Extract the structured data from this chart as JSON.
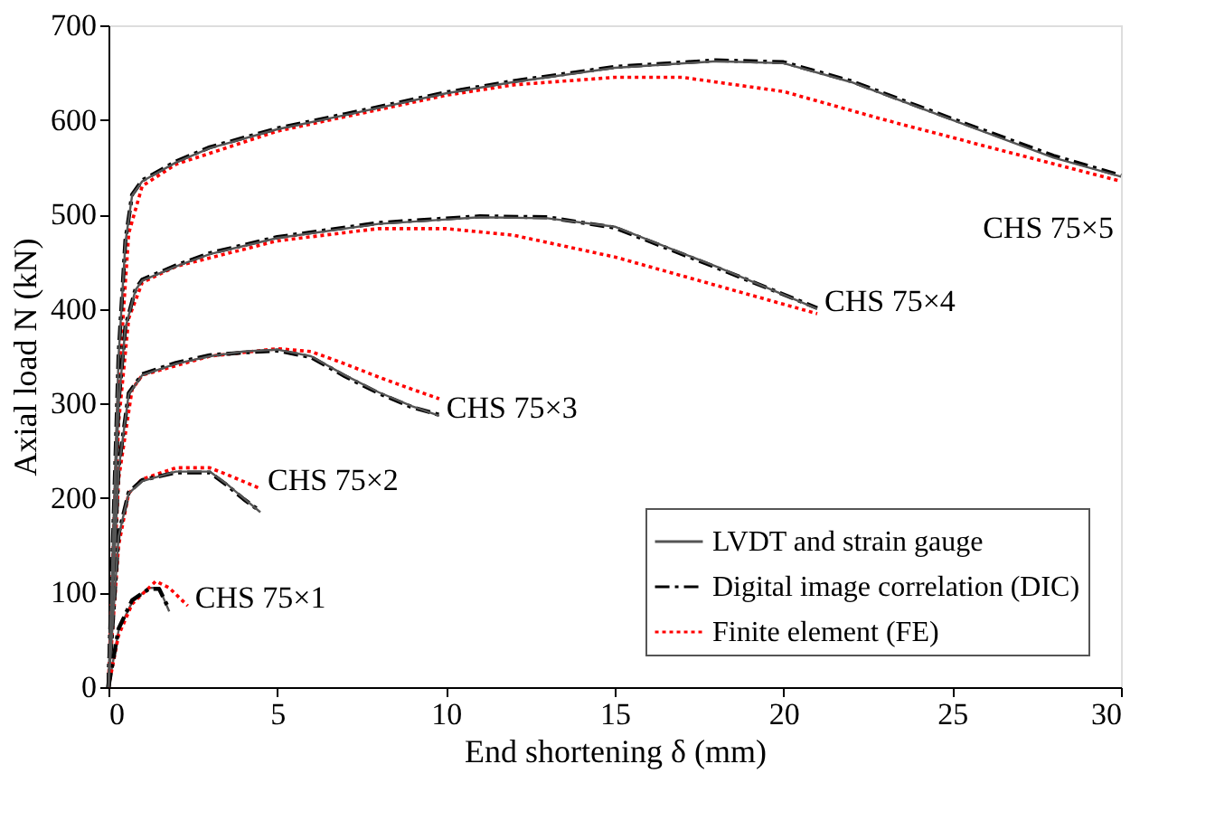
{
  "chart_data": {
    "type": "line",
    "xlabel": "End shortening δ (mm)",
    "ylabel": "Axial load N (kN)",
    "xlim": [
      0,
      30
    ],
    "xticks": [
      0,
      5,
      10,
      15,
      20,
      25,
      30
    ],
    "ylim": [
      0,
      700
    ],
    "yticks": [
      0,
      100,
      200,
      300,
      400,
      500,
      600,
      700
    ],
    "grid": false,
    "legend": "bottom right",
    "marker": "none",
    "series": [
      {
        "name": "LVDT and strain gauge",
        "color": "#555555",
        "line_style": "solid",
        "x": [
          0,
          0.3,
          0.7,
          1.2,
          1.5,
          1.8
        ],
        "values": [
          0,
          60,
          90,
          105,
          105,
          80
        ]
      },
      {
        "color": "#555555",
        "line_style": "solid",
        "x": [
          0,
          0.3,
          0.6,
          1,
          2,
          3,
          3.5,
          4,
          4.5
        ],
        "values": [
          0,
          160,
          205,
          218,
          228,
          228,
          215,
          200,
          185
        ]
      },
      {
        "color": "#555555",
        "line_style": "solid",
        "x": [
          0,
          0.3,
          0.6,
          1,
          2,
          3,
          4,
          5,
          6,
          7,
          8,
          9,
          9.8
        ],
        "values": [
          0,
          230,
          310,
          330,
          342,
          350,
          355,
          357,
          350,
          330,
          312,
          297,
          287
        ]
      },
      {
        "color": "#555555",
        "line_style": "solid",
        "x": [
          0,
          0.3,
          0.5,
          0.8,
          1,
          2,
          3,
          5,
          8,
          11,
          13,
          15,
          18,
          21
        ],
        "values": [
          0,
          300,
          380,
          420,
          430,
          445,
          458,
          475,
          490,
          497,
          496,
          487,
          445,
          400
        ]
      },
      {
        "color": "#555555",
        "line_style": "solid",
        "x": [
          0,
          0.3,
          0.5,
          0.7,
          1,
          2,
          3,
          5,
          7,
          10,
          12,
          15,
          18,
          20,
          22,
          25,
          28,
          30
        ],
        "values": [
          0,
          350,
          470,
          520,
          535,
          555,
          570,
          590,
          605,
          628,
          640,
          655,
          662,
          660,
          640,
          600,
          560,
          540
        ]
      },
      {
        "name": "Digital image correlation (DIC)",
        "color": "#000000",
        "line_style": "dashdot",
        "x": [
          0,
          0.3,
          0.7,
          1.2,
          1.5,
          1.8
        ],
        "values": [
          0,
          62,
          92,
          104,
          104,
          82
        ]
      },
      {
        "color": "#000000",
        "line_style": "dashdot",
        "x": [
          0,
          0.3,
          0.6,
          1,
          2,
          3,
          3.5,
          4,
          4.5
        ],
        "values": [
          0,
          162,
          206,
          219,
          227,
          227,
          214,
          199,
          186
        ]
      },
      {
        "color": "#000000",
        "line_style": "dashdot",
        "x": [
          0,
          0.3,
          0.6,
          1,
          2,
          3,
          4,
          5,
          6,
          7,
          8,
          9,
          9.8
        ],
        "values": [
          0,
          232,
          311,
          331,
          343,
          351,
          354,
          356,
          349,
          329,
          311,
          296,
          288
        ]
      },
      {
        "color": "#000000",
        "line_style": "dashdot",
        "x": [
          0,
          0.3,
          0.5,
          0.8,
          1,
          2,
          3,
          5,
          8,
          11,
          13,
          15,
          18,
          21
        ],
        "values": [
          0,
          302,
          381,
          421,
          431,
          446,
          459,
          476,
          491,
          498,
          497,
          486,
          444,
          401
        ]
      },
      {
        "color": "#000000",
        "line_style": "dashdot",
        "x": [
          0,
          0.3,
          0.5,
          0.7,
          1,
          2,
          3,
          5,
          7,
          10,
          12,
          15,
          18,
          20,
          22,
          25,
          28,
          30
        ],
        "values": [
          0,
          352,
          472,
          521,
          536,
          556,
          571,
          591,
          606,
          629,
          641,
          656,
          663,
          661,
          641,
          601,
          562,
          541
        ]
      },
      {
        "name": "Finite element (FE)",
        "color": "#ff0000",
        "line_style": "dotted",
        "x": [
          0,
          0.3,
          0.7,
          1.4,
          1.8,
          2.35
        ],
        "values": [
          0,
          55,
          88,
          112,
          105,
          86
        ]
      },
      {
        "color": "#ff0000",
        "line_style": "dotted",
        "x": [
          0,
          0.3,
          0.6,
          1,
          2,
          3,
          3.5,
          4.5
        ],
        "values": [
          0,
          150,
          205,
          220,
          232,
          232,
          225,
          210
        ]
      },
      {
        "color": "#ff0000",
        "line_style": "dotted",
        "x": [
          0,
          0.3,
          0.7,
          1,
          3,
          5,
          6,
          7,
          8,
          9,
          9.8
        ],
        "values": [
          0,
          220,
          315,
          330,
          350,
          358,
          355,
          342,
          328,
          315,
          305
        ]
      },
      {
        "color": "#ff0000",
        "line_style": "dotted",
        "x": [
          0,
          0.3,
          0.6,
          1,
          2,
          5,
          8,
          10,
          12,
          15,
          18,
          21
        ],
        "values": [
          0,
          280,
          390,
          428,
          445,
          472,
          485,
          485,
          478,
          455,
          425,
          395
        ]
      },
      {
        "color": "#ff0000",
        "line_style": "dotted",
        "x": [
          0,
          0.3,
          0.6,
          1,
          2,
          5,
          10,
          12,
          15,
          17,
          20,
          23,
          26,
          30
        ],
        "values": [
          0,
          320,
          480,
          530,
          553,
          588,
          626,
          637,
          645,
          645,
          630,
          600,
          572,
          535
        ]
      }
    ],
    "annotations": [
      {
        "text": "CHS 75×1",
        "x": 2.35,
        "y": 86
      },
      {
        "text": "CHS 75×2",
        "x": 4.5,
        "y": 210
      },
      {
        "text": "CHS 75×3",
        "x": 9.8,
        "y": 287
      },
      {
        "text": "CHS 75×4",
        "x": 21,
        "y": 400
      },
      {
        "text": "CHS 75×5",
        "x": 30,
        "y": 535
      }
    ]
  }
}
